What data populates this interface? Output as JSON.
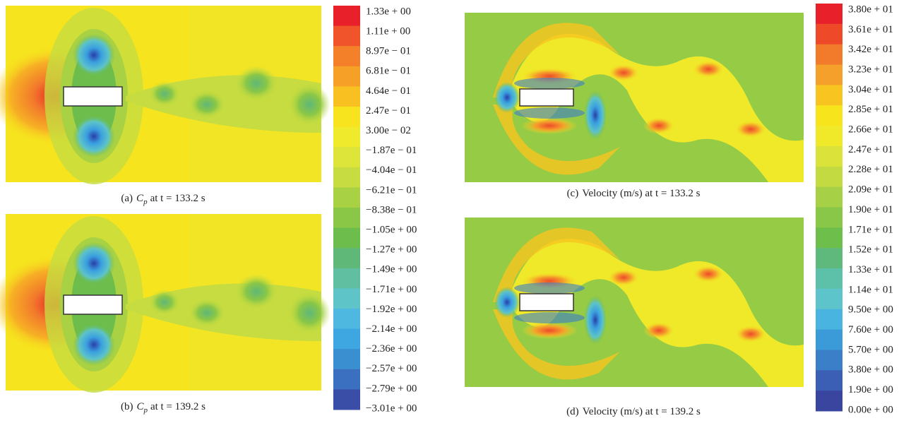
{
  "panels": [
    {
      "label": "(a)",
      "symbol": "C",
      "subscript": "p",
      "text": "at t = 133.2 s"
    },
    {
      "label": "(b)",
      "symbol": "C",
      "subscript": "p",
      "text": "at t = 139.2 s"
    },
    {
      "label": "(c)",
      "symbol": "",
      "subscript": "",
      "text": "Velocity (m/s) at t = 133.2 s"
    },
    {
      "label": "(d)",
      "symbol": "",
      "subscript": "",
      "text": "Velocity (m/s) at t = 139.2 s"
    }
  ],
  "colorbars": [
    {
      "labels": [
        "1.33e + 00",
        "1.11e + 00",
        "8.97e − 01",
        "6.81e − 01",
        "4.64e − 01",
        "2.47e − 01",
        "3.00e − 02",
        "−1.87e − 01",
        "−4.04e − 01",
        "−6.21e − 01",
        "−8.38e − 01",
        "−1.05e + 00",
        "−1.27e + 00",
        "−1.49e + 00",
        "−1.71e + 00",
        "−1.92e + 00",
        "−2.14e + 00",
        "−2.36e + 00",
        "−2.57e + 00",
        "−2.79e + 00",
        "−3.01e + 00"
      ],
      "colors": [
        "#e8202a",
        "#f0542a",
        "#f4802a",
        "#f7a028",
        "#f8c020",
        "#f7e31e",
        "#f0ea2c",
        "#dde43a",
        "#c6dc40",
        "#a9d144",
        "#8ac747",
        "#6cbd4c",
        "#5fb878",
        "#5fbfa0",
        "#5ec4c8",
        "#4fb8e0",
        "#3ea6e0",
        "#3a8fd0",
        "#3b70c0",
        "#3a4ea8"
      ]
    },
    {
      "labels": [
        "3.80e + 01",
        "3.61e + 01",
        "3.42e + 01",
        "3.23e + 01",
        "3.04e + 01",
        "2.85e + 01",
        "2.66e + 01",
        "2.47e + 01",
        "2.28e + 01",
        "2.09e + 01",
        "1.90e + 01",
        "1.71e + 01",
        "1.52e + 01",
        "1.33e + 01",
        "1.14e + 01",
        "9.50e + 00",
        "7.60e + 00",
        "5.70e + 00",
        "3.80e + 00",
        "1.90e + 00",
        "0.00e + 00"
      ],
      "colors": [
        "#e8202a",
        "#ee4a2a",
        "#f27a2b",
        "#f5a02a",
        "#f8c41f",
        "#f7e41d",
        "#efe92a",
        "#dbe33a",
        "#c3db40",
        "#a6d045",
        "#88c748",
        "#6ebe4c",
        "#5fb97c",
        "#5dc0a8",
        "#5ec4cc",
        "#4ab4e0",
        "#3a9bd8",
        "#3a7fc8",
        "#3b5fb4",
        "#3a45a0"
      ]
    }
  ]
}
